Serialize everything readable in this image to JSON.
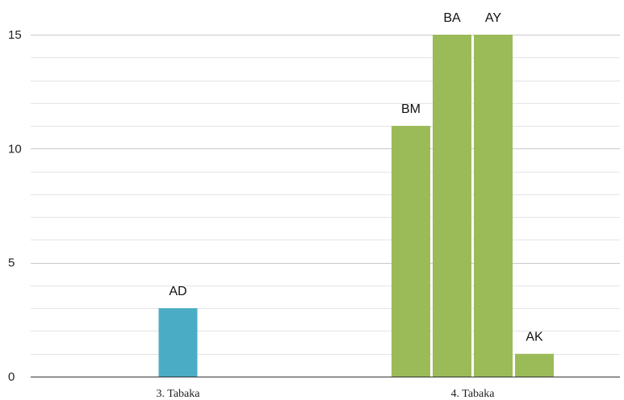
{
  "chart_data": {
    "type": "bar",
    "title": "",
    "xlabel": "",
    "ylabel": "",
    "ylim": [
      0,
      15
    ],
    "y_ticks": [
      "0",
      "5",
      "10",
      "15"
    ],
    "minor_gridlines_per_major": 5,
    "grid": true,
    "categories": [
      "3. Tabaka",
      "4. Tabaka"
    ],
    "groups": [
      {
        "category": "3. Tabaka",
        "color": "#4AACC5",
        "bars": [
          {
            "label": "AD",
            "value": 3
          }
        ]
      },
      {
        "category": "4. Tabaka",
        "color": "#9BBB59",
        "bars": [
          {
            "label": "BM",
            "value": 11
          },
          {
            "label": "BA",
            "value": 15
          },
          {
            "label": "AY",
            "value": 15
          },
          {
            "label": "AK",
            "value": 1
          }
        ]
      }
    ]
  }
}
